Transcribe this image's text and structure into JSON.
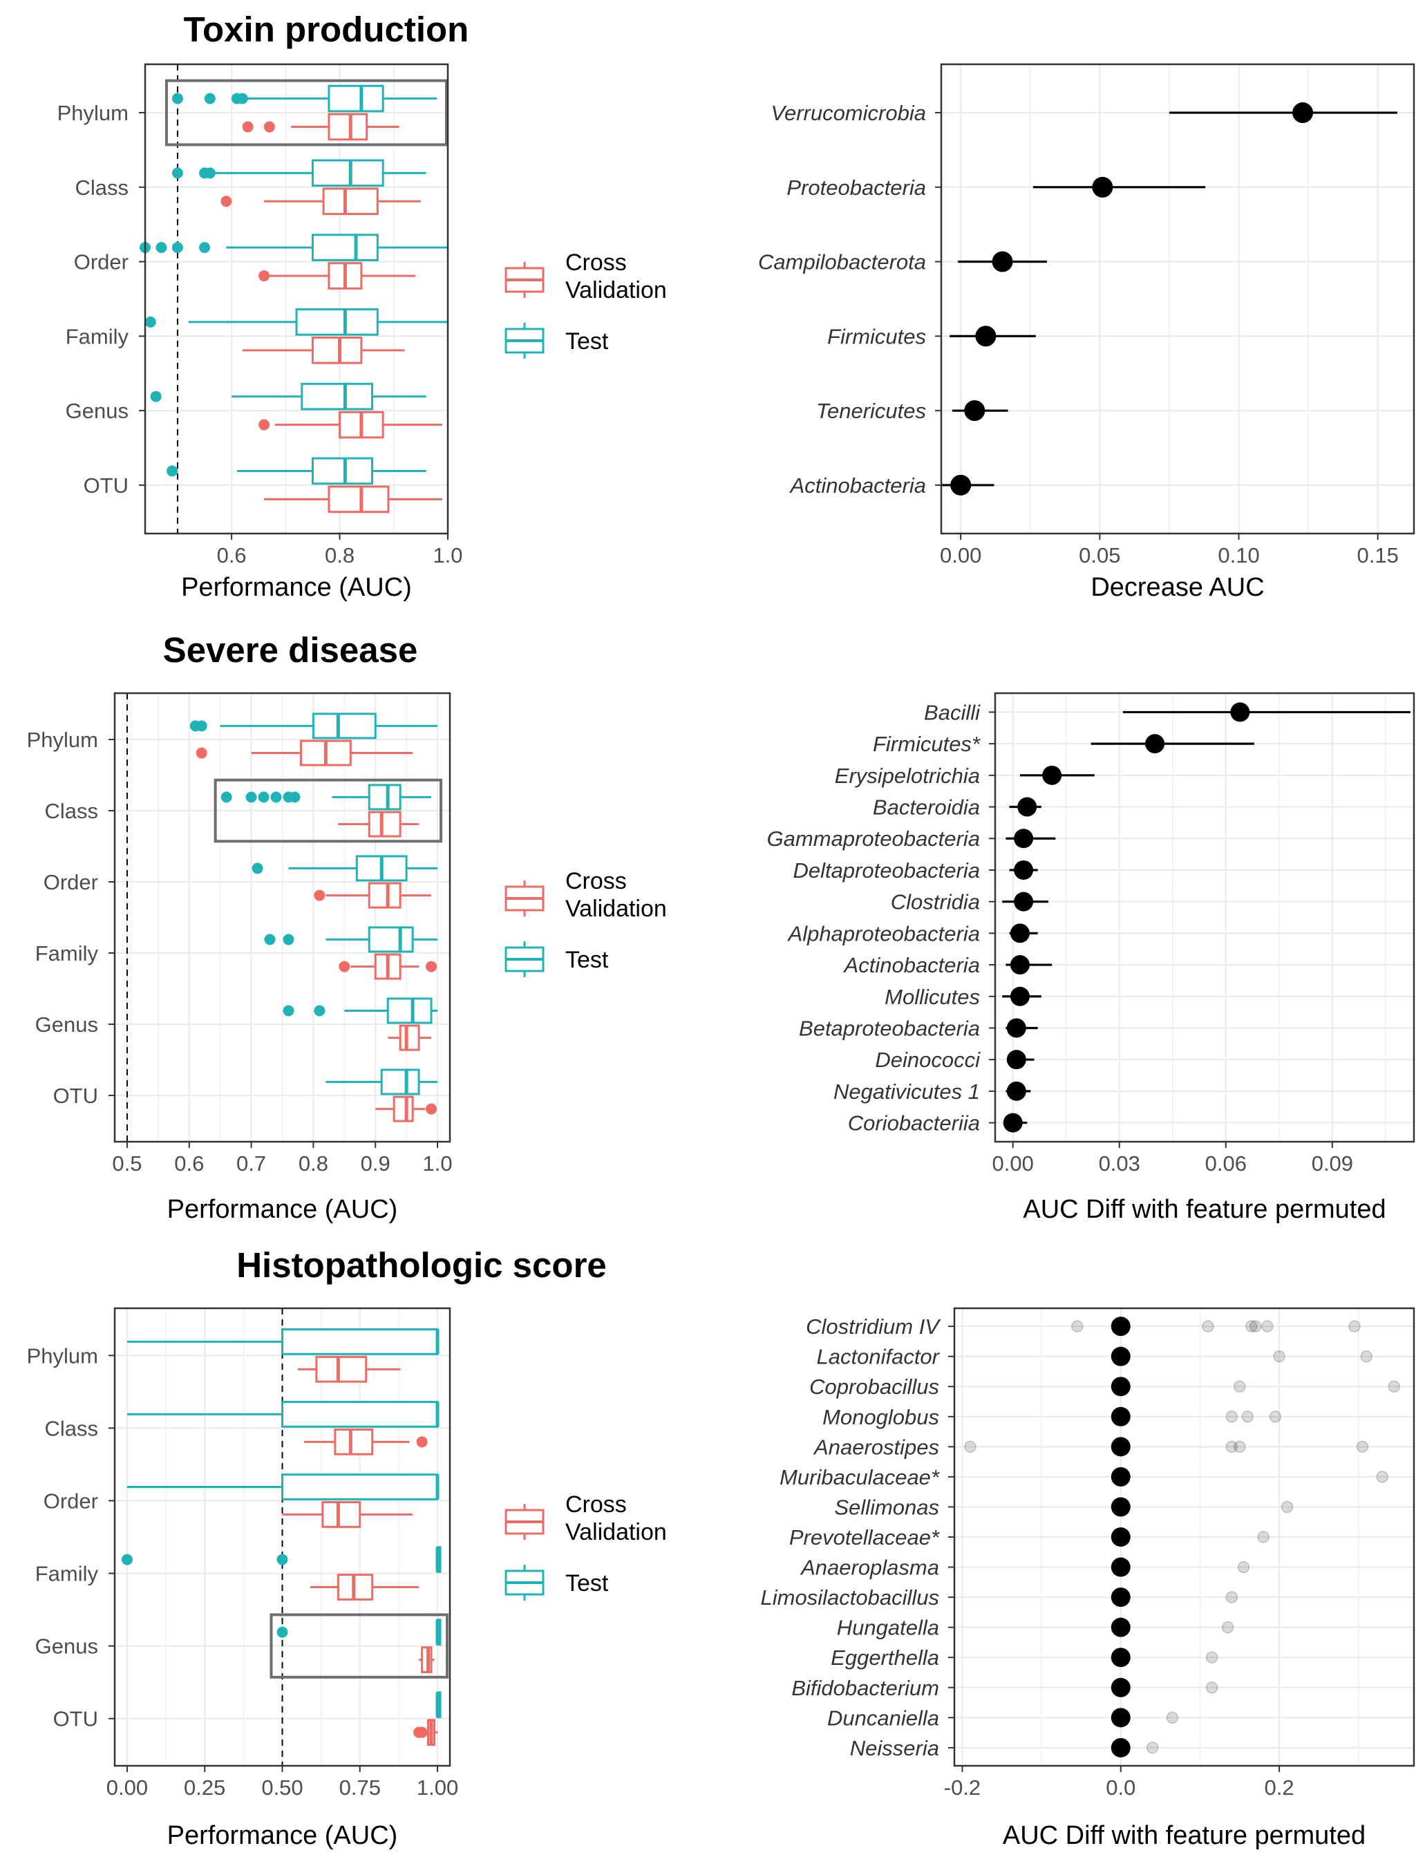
{
  "colors": {
    "cv": "#f06a64",
    "test": "#1fb3b8",
    "grid": "#ebebeb",
    "frame": "#333333",
    "highlight": "#6e6e6e"
  },
  "legend": {
    "cv_line1": "Cross",
    "cv_line2": "Validation",
    "test": "Test"
  },
  "chart_data": [
    {
      "id": "toxin-box",
      "type": "boxplot",
      "title": "Toxin production",
      "xlabel": "Performance (AUC)",
      "xlim": [
        0.44,
        1.0
      ],
      "ticks": [
        0.6,
        0.8,
        1.0
      ],
      "tick_labels": [
        "0.6",
        "0.8",
        "1.0"
      ],
      "reference_line": 0.5,
      "highlight": "Phylum",
      "categories": [
        "Phylum",
        "Class",
        "Order",
        "Family",
        "Genus",
        "OTU"
      ],
      "series": [
        {
          "name": "Cross Validation",
          "boxes": [
            {
              "wmin": 0.71,
              "q1": 0.78,
              "med": 0.82,
              "q3": 0.85,
              "wmax": 0.91,
              "out": [
                0.63,
                0.67
              ]
            },
            {
              "wmin": 0.66,
              "q1": 0.77,
              "med": 0.81,
              "q3": 0.87,
              "wmax": 0.95,
              "out": [
                0.59
              ]
            },
            {
              "wmin": 0.67,
              "q1": 0.78,
              "med": 0.81,
              "q3": 0.84,
              "wmax": 0.94,
              "out": [
                0.66
              ]
            },
            {
              "wmin": 0.62,
              "q1": 0.75,
              "med": 0.8,
              "q3": 0.84,
              "wmax": 0.92,
              "out": []
            },
            {
              "wmin": 0.68,
              "q1": 0.8,
              "med": 0.84,
              "q3": 0.88,
              "wmax": 0.99,
              "out": [
                0.66
              ]
            },
            {
              "wmin": 0.66,
              "q1": 0.78,
              "med": 0.84,
              "q3": 0.89,
              "wmax": 0.99,
              "out": []
            }
          ]
        },
        {
          "name": "Test",
          "boxes": [
            {
              "wmin": 0.63,
              "q1": 0.78,
              "med": 0.84,
              "q3": 0.88,
              "wmax": 0.98,
              "out": [
                0.5,
                0.56,
                0.61,
                0.62
              ]
            },
            {
              "wmin": 0.56,
              "q1": 0.75,
              "med": 0.82,
              "q3": 0.88,
              "wmax": 0.96,
              "out": [
                0.5,
                0.55,
                0.56
              ]
            },
            {
              "wmin": 0.59,
              "q1": 0.75,
              "med": 0.83,
              "q3": 0.87,
              "wmax": 1.0,
              "out": [
                0.44,
                0.47,
                0.5,
                0.55
              ]
            },
            {
              "wmin": 0.52,
              "q1": 0.72,
              "med": 0.81,
              "q3": 0.87,
              "wmax": 1.0,
              "out": [
                0.45
              ]
            },
            {
              "wmin": 0.6,
              "q1": 0.73,
              "med": 0.81,
              "q3": 0.86,
              "wmax": 0.96,
              "out": [
                0.46
              ]
            },
            {
              "wmin": 0.61,
              "q1": 0.75,
              "med": 0.81,
              "q3": 0.86,
              "wmax": 0.96,
              "out": [
                0.49
              ]
            }
          ]
        }
      ]
    },
    {
      "id": "toxin-imp",
      "type": "errorbar",
      "xlabel": "Decrease AUC",
      "xlim": [
        -0.007,
        0.163
      ],
      "ticks": [
        0,
        0.05,
        0.1,
        0.15
      ],
      "tick_labels": [
        "0.00",
        "0.05",
        "0.10",
        "0.15"
      ],
      "label_style": "italic",
      "items": [
        {
          "label": "Verrucomicrobia",
          "value": 0.123,
          "lo": 0.075,
          "hi": 0.157
        },
        {
          "label": "Proteobacteria",
          "value": 0.051,
          "lo": 0.026,
          "hi": 0.088
        },
        {
          "label": "Campilobacterota",
          "value": 0.015,
          "lo": -0.001,
          "hi": 0.031
        },
        {
          "label": "Firmicutes",
          "value": 0.009,
          "lo": -0.004,
          "hi": 0.027
        },
        {
          "label": "Tenericutes",
          "value": 0.005,
          "lo": -0.003,
          "hi": 0.017
        },
        {
          "label": "Actinobacteria",
          "value": 0.0,
          "lo": -0.007,
          "hi": 0.012
        }
      ]
    },
    {
      "id": "severe-box",
      "type": "boxplot",
      "title": "Severe disease",
      "xlabel": "Performance (AUC)",
      "xlim": [
        0.48,
        1.02
      ],
      "ticks": [
        0.5,
        0.6,
        0.7,
        0.8,
        0.9,
        1.0
      ],
      "tick_labels": [
        "0.5",
        "0.6",
        "0.7",
        "0.8",
        "0.9",
        "1.0"
      ],
      "reference_line": 0.5,
      "highlight": "Class",
      "categories": [
        "Phylum",
        "Class",
        "Order",
        "Family",
        "Genus",
        "OTU"
      ],
      "series": [
        {
          "name": "Cross Validation",
          "boxes": [
            {
              "wmin": 0.7,
              "q1": 0.78,
              "med": 0.82,
              "q3": 0.86,
              "wmax": 0.96,
              "out": [
                0.62
              ]
            },
            {
              "wmin": 0.84,
              "q1": 0.89,
              "med": 0.91,
              "q3": 0.94,
              "wmax": 0.97,
              "out": []
            },
            {
              "wmin": 0.82,
              "q1": 0.89,
              "med": 0.92,
              "q3": 0.94,
              "wmax": 0.99,
              "out": [
                0.81
              ]
            },
            {
              "wmin": 0.86,
              "q1": 0.9,
              "med": 0.92,
              "q3": 0.94,
              "wmax": 0.97,
              "out": [
                0.85,
                0.99
              ]
            },
            {
              "wmin": 0.92,
              "q1": 0.94,
              "med": 0.95,
              "q3": 0.97,
              "wmax": 0.99,
              "out": []
            },
            {
              "wmin": 0.9,
              "q1": 0.93,
              "med": 0.95,
              "q3": 0.96,
              "wmax": 0.98,
              "out": [
                0.99
              ]
            }
          ]
        },
        {
          "name": "Test",
          "boxes": [
            {
              "wmin": 0.65,
              "q1": 0.8,
              "med": 0.84,
              "q3": 0.9,
              "wmax": 1.0,
              "out": [
                0.61,
                0.62
              ]
            },
            {
              "wmin": 0.83,
              "q1": 0.89,
              "med": 0.92,
              "q3": 0.94,
              "wmax": 0.99,
              "out": [
                0.66,
                0.7,
                0.72,
                0.74,
                0.76,
                0.77
              ]
            },
            {
              "wmin": 0.76,
              "q1": 0.87,
              "med": 0.91,
              "q3": 0.95,
              "wmax": 1.0,
              "out": [
                0.71
              ]
            },
            {
              "wmin": 0.82,
              "q1": 0.89,
              "med": 0.94,
              "q3": 0.96,
              "wmax": 1.0,
              "out": [
                0.73,
                0.76
              ]
            },
            {
              "wmin": 0.85,
              "q1": 0.92,
              "med": 0.96,
              "q3": 0.99,
              "wmax": 1.0,
              "out": [
                0.76,
                0.81
              ]
            },
            {
              "wmin": 0.82,
              "q1": 0.91,
              "med": 0.95,
              "q3": 0.97,
              "wmax": 1.0,
              "out": []
            }
          ]
        }
      ]
    },
    {
      "id": "severe-imp",
      "type": "errorbar",
      "xlabel": "AUC Diff with feature permuted",
      "xlim": [
        -0.005,
        0.113
      ],
      "ticks": [
        0,
        0.03,
        0.06,
        0.09
      ],
      "tick_labels": [
        "0.00",
        "0.03",
        "0.06",
        "0.09"
      ],
      "label_style": "italic",
      "items": [
        {
          "label": "Bacilli",
          "value": 0.064,
          "lo": 0.031,
          "hi": 0.112
        },
        {
          "label": "Firmicutes*",
          "value": 0.04,
          "lo": 0.022,
          "hi": 0.068
        },
        {
          "label": "Erysipelotrichia",
          "value": 0.011,
          "lo": 0.002,
          "hi": 0.023
        },
        {
          "label": "Bacteroidia",
          "value": 0.004,
          "lo": -0.001,
          "hi": 0.008
        },
        {
          "label": "Gammaproteobacteria",
          "value": 0.003,
          "lo": -0.002,
          "hi": 0.012
        },
        {
          "label": "Deltaproteobacteria",
          "value": 0.003,
          "lo": -0.001,
          "hi": 0.007
        },
        {
          "label": "Clostridia",
          "value": 0.003,
          "lo": -0.003,
          "hi": 0.01
        },
        {
          "label": "Alphaproteobacteria",
          "value": 0.002,
          "lo": -0.001,
          "hi": 0.007
        },
        {
          "label": "Actinobacteria",
          "value": 0.002,
          "lo": -0.002,
          "hi": 0.011
        },
        {
          "label": "Mollicutes",
          "value": 0.002,
          "lo": -0.003,
          "hi": 0.008
        },
        {
          "label": "Betaproteobacteria",
          "value": 0.001,
          "lo": -0.002,
          "hi": 0.007
        },
        {
          "label": "Deinococci",
          "value": 0.001,
          "lo": -0.001,
          "hi": 0.006
        },
        {
          "label": "Negativicutes 1",
          "value": 0.001,
          "lo": -0.002,
          "hi": 0.005
        },
        {
          "label": "Coriobacteriia",
          "value": 0.0,
          "lo": -0.002,
          "hi": 0.004
        }
      ]
    },
    {
      "id": "histo-box",
      "type": "boxplot",
      "title": "Histopathologic score",
      "xlabel": "Performance (AUC)",
      "xlim": [
        -0.04,
        1.04
      ],
      "ticks": [
        0,
        0.25,
        0.5,
        0.75,
        1.0
      ],
      "tick_labels": [
        "0.00",
        "0.25",
        "0.50",
        "0.75",
        "1.00"
      ],
      "reference_line": 0.5,
      "highlight": "Genus",
      "categories": [
        "Phylum",
        "Class",
        "Order",
        "Family",
        "Genus",
        "OTU"
      ],
      "series": [
        {
          "name": "Cross Validation",
          "boxes": [
            {
              "wmin": 0.55,
              "q1": 0.61,
              "med": 0.68,
              "q3": 0.77,
              "wmax": 0.88,
              "out": []
            },
            {
              "wmin": 0.57,
              "q1": 0.67,
              "med": 0.72,
              "q3": 0.79,
              "wmax": 0.91,
              "out": [
                0.95
              ]
            },
            {
              "wmin": 0.5,
              "q1": 0.63,
              "med": 0.68,
              "q3": 0.75,
              "wmax": 0.92,
              "out": []
            },
            {
              "wmin": 0.59,
              "q1": 0.68,
              "med": 0.73,
              "q3": 0.79,
              "wmax": 0.94,
              "out": []
            },
            {
              "wmin": 0.94,
              "q1": 0.95,
              "med": 0.97,
              "q3": 0.98,
              "wmax": 0.99,
              "out": []
            },
            {
              "wmin": 0.95,
              "q1": 0.97,
              "med": 0.98,
              "q3": 0.99,
              "wmax": 1.0,
              "out": [
                0.94,
                0.95
              ]
            }
          ]
        },
        {
          "name": "Test",
          "boxes": [
            {
              "wmin": 0.0,
              "q1": 0.5,
              "med": 1.0,
              "q3": 1.0,
              "wmax": 1.0,
              "out": []
            },
            {
              "wmin": 0.0,
              "q1": 0.5,
              "med": 1.0,
              "q3": 1.0,
              "wmax": 1.0,
              "out": []
            },
            {
              "wmin": 0.0,
              "q1": 0.5,
              "med": 1.0,
              "q3": 1.0,
              "wmax": 1.0,
              "out": []
            },
            {
              "wmin": 1.0,
              "q1": 1.0,
              "med": 1.0,
              "q3": 1.0,
              "wmax": 1.0,
              "out": [
                0.0,
                0.5
              ]
            },
            {
              "wmin": 1.0,
              "q1": 1.0,
              "med": 1.0,
              "q3": 1.0,
              "wmax": 1.0,
              "out": [
                0.5
              ]
            },
            {
              "wmin": 1.0,
              "q1": 1.0,
              "med": 1.0,
              "q3": 1.0,
              "wmax": 1.0,
              "out": []
            }
          ]
        }
      ]
    },
    {
      "id": "histo-imp",
      "type": "dotstrip",
      "xlabel": "AUC Diff with feature permuted",
      "xlim": [
        -0.21,
        0.37
      ],
      "ticks": [
        -0.2,
        0,
        0.2
      ],
      "tick_labels": [
        "-0.2",
        "0.0",
        "0.2"
      ],
      "label_style": "italic",
      "items": [
        {
          "label": "Clostridium IV",
          "value": 0.0,
          "points": [
            -0.055,
            0.11,
            0.165,
            0.17,
            0.185,
            0.295
          ]
        },
        {
          "label": "Lactonifactor",
          "value": 0.0,
          "points": [
            0.2,
            0.31
          ]
        },
        {
          "label": "Coprobacillus",
          "value": 0.0,
          "points": [
            0.15,
            0.345
          ]
        },
        {
          "label": "Monoglobus",
          "value": 0.0,
          "points": [
            0.14,
            0.16,
            0.195
          ]
        },
        {
          "label": "Anaerostipes",
          "value": 0.0,
          "points": [
            -0.19,
            0.14,
            0.15,
            0.305
          ]
        },
        {
          "label": "Muribaculaceae*",
          "value": 0.0,
          "points": [
            0.33
          ]
        },
        {
          "label": "Sellimonas",
          "value": 0.0,
          "points": [
            0.21
          ]
        },
        {
          "label": "Prevotellaceae*",
          "value": 0.0,
          "points": [
            0.18
          ]
        },
        {
          "label": "Anaeroplasma",
          "value": 0.0,
          "points": [
            0.155
          ]
        },
        {
          "label": "Limosilactobacillus",
          "value": 0.0,
          "points": [
            0.14
          ]
        },
        {
          "label": "Hungatella",
          "value": 0.0,
          "points": [
            0.135
          ]
        },
        {
          "label": "Eggerthella",
          "value": 0.0,
          "points": [
            0.115
          ]
        },
        {
          "label": "Bifidobacterium",
          "value": 0.0,
          "points": [
            0.115
          ]
        },
        {
          "label": "Duncaniella",
          "value": 0.0,
          "points": [
            0.065
          ]
        },
        {
          "label": "Neisseria",
          "value": 0.0,
          "points": [
            0.04
          ]
        }
      ]
    }
  ]
}
